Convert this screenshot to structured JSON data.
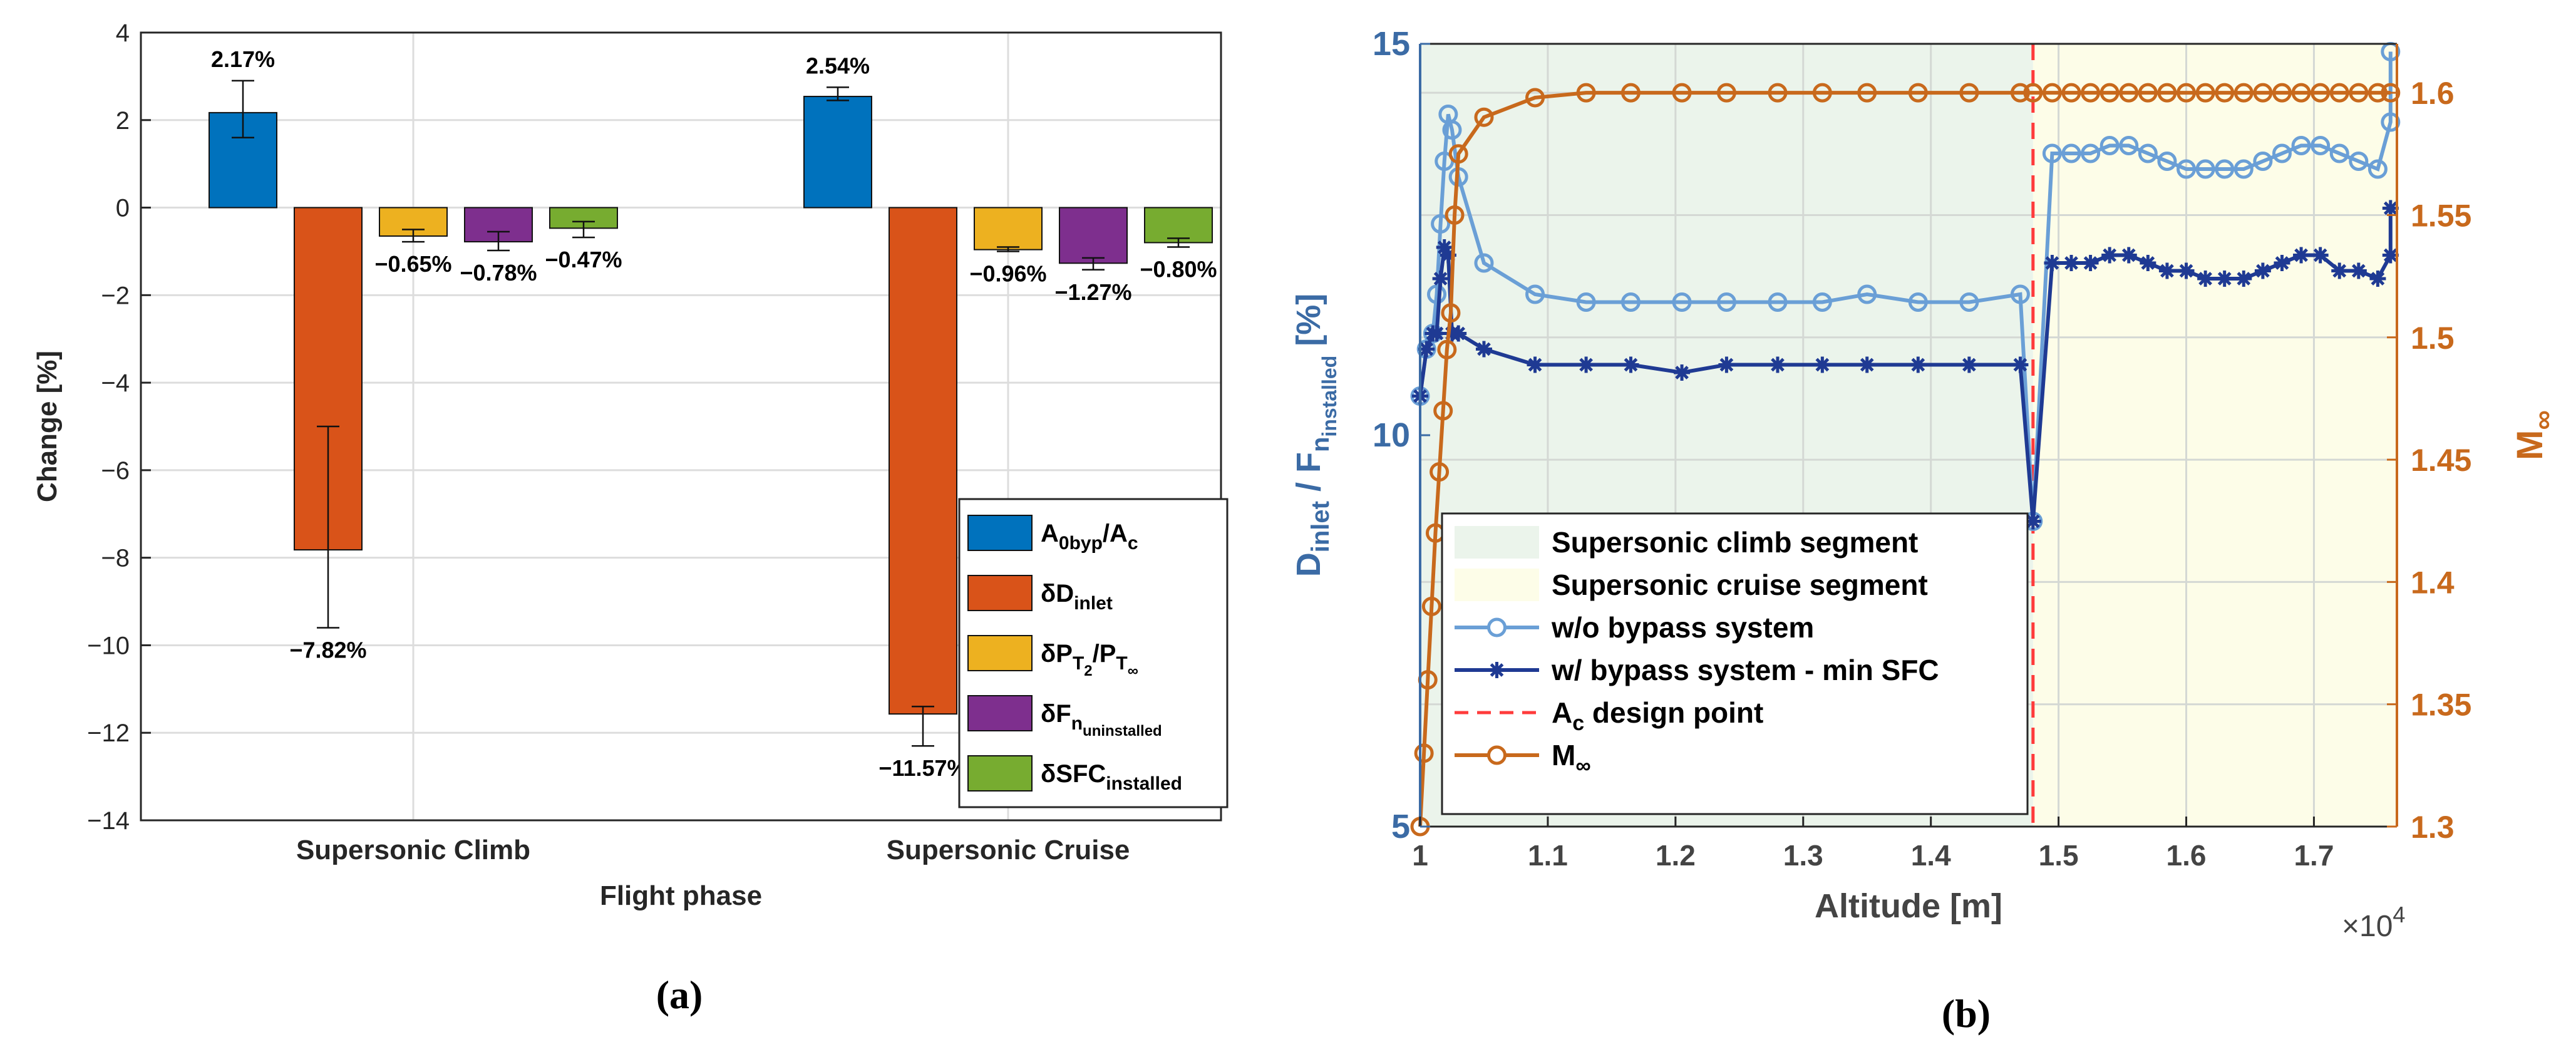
{
  "chart_data": [
    {
      "panel": "a",
      "type": "bar",
      "caption": "(a)",
      "xlabel": "Flight phase",
      "ylabel": "Change [%]",
      "ylim": [
        -14,
        4
      ],
      "yticks": [
        4,
        2,
        0,
        -2,
        -4,
        -6,
        -8,
        -10,
        -12,
        -14
      ],
      "ytick_labels": [
        "4",
        "2",
        "0",
        "−2",
        "−4",
        "−6",
        "−8",
        "−10",
        "−12",
        "−14"
      ],
      "grid": true,
      "legend_position": "bottom-right",
      "categories": [
        "Supersonic Climb",
        "Supersonic Cruise"
      ],
      "series": [
        {
          "name": "A0byp/Ac",
          "legend": {
            "main": "A",
            "sub1": "0byp",
            "mid": "/A",
            "sub2": "c"
          },
          "color": "#0072BD",
          "values": [
            2.17,
            2.54
          ],
          "errors": [
            [
              1.6,
              2.9
            ],
            [
              2.45,
              2.75
            ]
          ],
          "labels": [
            "2.17%",
            "2.54%"
          ]
        },
        {
          "name": "δDinlet",
          "legend": {
            "main": "δD",
            "sub1": "inlet"
          },
          "color": "#D95319",
          "values": [
            -7.82,
            -11.57
          ],
          "errors": [
            [
              -9.6,
              -5.0
            ],
            [
              -12.3,
              -11.4
            ]
          ],
          "labels": [
            "−7.82%",
            "−11.57%"
          ]
        },
        {
          "name": "δPT2/PT∞",
          "legend": {
            "main": "δP",
            "sub1": "T",
            "subsub1": "2",
            "mid": "/P",
            "sub2": "T",
            "subsub2": "∞"
          },
          "color": "#EDB120",
          "values": [
            -0.65,
            -0.96
          ],
          "errors": [
            [
              -0.78,
              -0.5
            ],
            [
              -1.0,
              -0.9
            ]
          ],
          "labels": [
            "−0.65%",
            "−0.96%"
          ]
        },
        {
          "name": "δFn uninstalled",
          "legend": {
            "main": "δF",
            "sub1": "n",
            "subsub1": "uninstalled"
          },
          "color": "#7E2F8E",
          "values": [
            -0.78,
            -1.27
          ],
          "errors": [
            [
              -0.98,
              -0.55
            ],
            [
              -1.42,
              -1.15
            ]
          ],
          "labels": [
            "−0.78%",
            "−1.27%"
          ]
        },
        {
          "name": "δSFC installed",
          "legend": {
            "main": "δSFC",
            "sub1": "installed"
          },
          "color": "#77AC30",
          "values": [
            -0.47,
            -0.8
          ],
          "errors": [
            [
              -0.68,
              -0.32
            ],
            [
              -0.9,
              -0.7
            ]
          ],
          "labels": [
            "−0.47%",
            "−0.80%"
          ]
        }
      ]
    },
    {
      "panel": "b",
      "type": "line",
      "caption": "(b)",
      "xlabel": "Altitude [m]",
      "x_multiplier_label": "×10",
      "x_multiplier_exp": "4",
      "xlim": [
        1.0,
        1.765
      ],
      "xticks": [
        1,
        1.1,
        1.2,
        1.3,
        1.4,
        1.5,
        1.6,
        1.7
      ],
      "xtick_labels": [
        "1",
        "1.1",
        "1.2",
        "1.3",
        "1.4",
        "1.5",
        "1.6",
        "1.7"
      ],
      "ylabel_left": {
        "a": "D",
        "a_sub": "inlet",
        "b": " / F",
        "b_sub": "n",
        "b_subsub": "installed",
        "c": " [%]"
      },
      "ylim_left": [
        5,
        15
      ],
      "yticks_left": [
        5,
        10,
        15
      ],
      "ylabel_right": {
        "a": "M",
        "a_sub": "∞"
      },
      "ylim_right": [
        1.3,
        1.62
      ],
      "yticks_right": [
        1.3,
        1.35,
        1.4,
        1.45,
        1.5,
        1.55,
        1.6
      ],
      "ytick_labels_right": [
        "1.3",
        "1.35",
        "1.4",
        "1.45",
        "1.5",
        "1.55",
        "1.6"
      ],
      "grid": true,
      "legend_position": "bottom-left",
      "regions": [
        {
          "name": "Supersonic climb segment",
          "x": [
            1.0,
            1.48
          ],
          "color": "#EBF4EB"
        },
        {
          "name": "Supersonic cruise segment",
          "x": [
            1.48,
            1.765
          ],
          "color": "#FDFDE8"
        }
      ],
      "vline": {
        "name": "Ac design point",
        "legend": {
          "a": "A",
          "a_sub": "c",
          "b": " design point"
        },
        "x": 1.48,
        "color": "#FF3B3B"
      },
      "series": [
        {
          "name": "w/o bypass system",
          "axis": "left",
          "color": "#6A9FD6",
          "marker": "circle",
          "x": [
            1.0,
            1.005,
            1.01,
            1.013,
            1.016,
            1.019,
            1.022,
            1.025,
            1.03,
            1.05,
            1.09,
            1.13,
            1.165,
            1.205,
            1.24,
            1.28,
            1.315,
            1.35,
            1.39,
            1.43,
            1.47,
            1.48,
            1.495,
            1.51,
            1.525,
            1.54,
            1.555,
            1.57,
            1.585,
            1.6,
            1.615,
            1.63,
            1.645,
            1.66,
            1.675,
            1.69,
            1.705,
            1.72,
            1.735,
            1.75,
            1.76,
            1.76
          ],
          "y": [
            10.5,
            11.1,
            11.3,
            11.8,
            12.7,
            13.5,
            14.1,
            13.9,
            13.3,
            12.2,
            11.8,
            11.7,
            11.7,
            11.7,
            11.7,
            11.7,
            11.7,
            11.8,
            11.7,
            11.7,
            11.8,
            8.9,
            13.6,
            13.6,
            13.6,
            13.7,
            13.7,
            13.6,
            13.5,
            13.4,
            13.4,
            13.4,
            13.4,
            13.5,
            13.6,
            13.7,
            13.7,
            13.6,
            13.5,
            13.4,
            14.0,
            14.9
          ]
        },
        {
          "name": "w/ bypass system - min SFC",
          "axis": "left",
          "color": "#1F3A93",
          "marker": "star",
          "x": [
            1.0,
            1.005,
            1.01,
            1.013,
            1.016,
            1.019,
            1.022,
            1.025,
            1.03,
            1.05,
            1.09,
            1.13,
            1.165,
            1.205,
            1.24,
            1.28,
            1.315,
            1.35,
            1.39,
            1.43,
            1.47,
            1.48,
            1.495,
            1.51,
            1.525,
            1.54,
            1.555,
            1.57,
            1.585,
            1.6,
            1.615,
            1.63,
            1.645,
            1.66,
            1.675,
            1.69,
            1.705,
            1.72,
            1.735,
            1.75,
            1.76,
            1.76
          ],
          "y": [
            10.5,
            11.1,
            11.3,
            11.3,
            12.0,
            12.4,
            12.3,
            11.3,
            11.3,
            11.1,
            10.9,
            10.9,
            10.9,
            10.8,
            10.9,
            10.9,
            10.9,
            10.9,
            10.9,
            10.9,
            10.9,
            8.9,
            12.2,
            12.2,
            12.2,
            12.3,
            12.3,
            12.2,
            12.1,
            12.1,
            12.0,
            12.0,
            12.0,
            12.1,
            12.2,
            12.3,
            12.3,
            12.1,
            12.1,
            12.0,
            12.3,
            12.9
          ]
        },
        {
          "name": "M∞",
          "axis": "right",
          "legend": {
            "a": "M",
            "a_sub": "∞"
          },
          "color": "#C8691C",
          "marker": "circle",
          "x": [
            1.0,
            1.003,
            1.006,
            1.009,
            1.012,
            1.015,
            1.018,
            1.021,
            1.024,
            1.027,
            1.03,
            1.05,
            1.09,
            1.13,
            1.165,
            1.205,
            1.24,
            1.28,
            1.315,
            1.35,
            1.39,
            1.43,
            1.47,
            1.48,
            1.495,
            1.51,
            1.525,
            1.54,
            1.555,
            1.57,
            1.585,
            1.6,
            1.615,
            1.63,
            1.645,
            1.66,
            1.675,
            1.69,
            1.705,
            1.72,
            1.735,
            1.75,
            1.76
          ],
          "y": [
            1.3,
            1.33,
            1.36,
            1.39,
            1.42,
            1.445,
            1.47,
            1.495,
            1.51,
            1.55,
            1.575,
            1.59,
            1.598,
            1.6,
            1.6,
            1.6,
            1.6,
            1.6,
            1.6,
            1.6,
            1.6,
            1.6,
            1.6,
            1.6,
            1.6,
            1.6,
            1.6,
            1.6,
            1.6,
            1.6,
            1.6,
            1.6,
            1.6,
            1.6,
            1.6,
            1.6,
            1.6,
            1.6,
            1.6,
            1.6,
            1.6,
            1.6,
            1.6
          ]
        }
      ]
    }
  ]
}
